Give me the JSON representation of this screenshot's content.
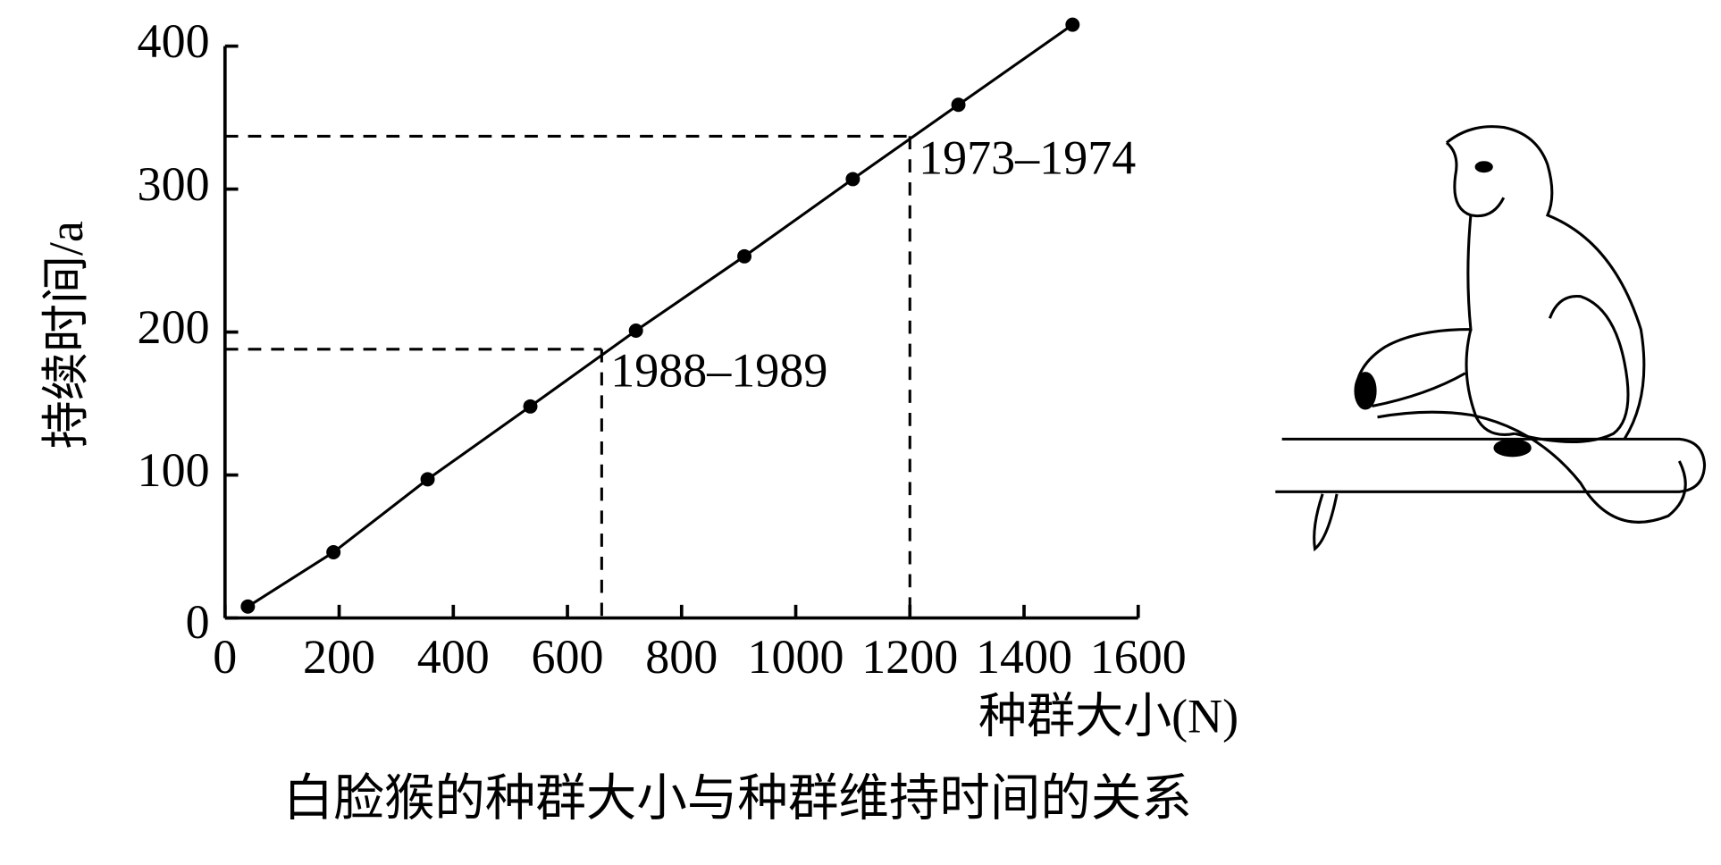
{
  "chart_data": {
    "type": "line",
    "caption": "白脸猴的种群大小与种群维持时间的关系",
    "x_label": "种群大小(N)",
    "y_label": "持续时间/a",
    "x": [
      40,
      190,
      355,
      535,
      720,
      910,
      1100,
      1285,
      1485
    ],
    "values": [
      8,
      46,
      97,
      148,
      201,
      253,
      307,
      359,
      415
    ],
    "color": "#000000",
    "xlim": [
      0,
      1600
    ],
    "xticks": [
      0,
      200,
      400,
      600,
      800,
      1000,
      1200,
      1400,
      1600
    ],
    "ylim": [
      0,
      400
    ],
    "yticks": [
      0,
      100,
      200,
      300,
      400
    ],
    "annotations": [
      {
        "text": "1988–1989",
        "x": 660,
        "y": 188
      },
      {
        "text": "1973–1974",
        "x": 1200,
        "y": 337
      }
    ]
  }
}
